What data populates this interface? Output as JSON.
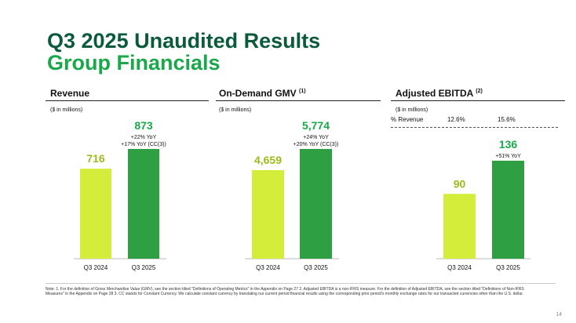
{
  "slide": {
    "title": "Q3 2025 Unaudited Results",
    "subtitle": "Group Financials",
    "footnote": "Note: 1. For the definition of Gross Merchandise Value (GMV), see the section titled \"Definitions of Operating Metrics\" in the Appendix on Page 27 2. Adjusted EBITDA is a non-IFRS measure. For the definition of Adjusted EBITDA, see the section titled \"Definitions of Non-IFRS Measures\" in the Appendix on Page 28 3. CC stands for Constant Currency. We calculate constant currency by translating our current period financial results using the corresponding prior period's monthly exchange rates for our transacted currencies other than the U.S. dollar.",
    "page_number": "14",
    "colors": {
      "prior_bar": "#d4ec3a",
      "current_bar": "#2ea043",
      "title": "#0b5a3c",
      "accent": "#1aa84a"
    }
  },
  "panels": [
    {
      "title": "Revenue",
      "sup": "",
      "unit": "($ in millions)"
    },
    {
      "title": "On-Demand GMV",
      "sup": "(1)",
      "unit": "($ in millions)"
    },
    {
      "title": "Adjusted EBITDA",
      "sup": "(2)",
      "unit": "($ in millions)",
      "pct_revenue_label": "% Revenue",
      "pct_values": [
        "12.6%",
        "15.6%"
      ]
    }
  ],
  "chart_data": [
    {
      "type": "bar",
      "title": "Revenue",
      "categories": [
        "Q3 2024",
        "Q3 2025"
      ],
      "values": [
        716,
        873
      ],
      "labels": [
        "716",
        "873"
      ],
      "annotations": [
        "+22% YoY",
        "+17% YoY (CC(3))"
      ]
    },
    {
      "type": "bar",
      "title": "On-Demand GMV",
      "categories": [
        "Q3 2024",
        "Q3 2025"
      ],
      "values": [
        4659,
        5774
      ],
      "labels": [
        "4,659",
        "5,774"
      ],
      "annotations": [
        "+24% YoY",
        "+20% YoY (CC(3))"
      ]
    },
    {
      "type": "bar",
      "title": "Adjusted EBITDA",
      "categories": [
        "Q3 2024",
        "Q3 2025"
      ],
      "values": [
        90,
        136
      ],
      "labels": [
        "90",
        "136"
      ],
      "annotations": [
        "+51% YoY"
      ]
    }
  ]
}
